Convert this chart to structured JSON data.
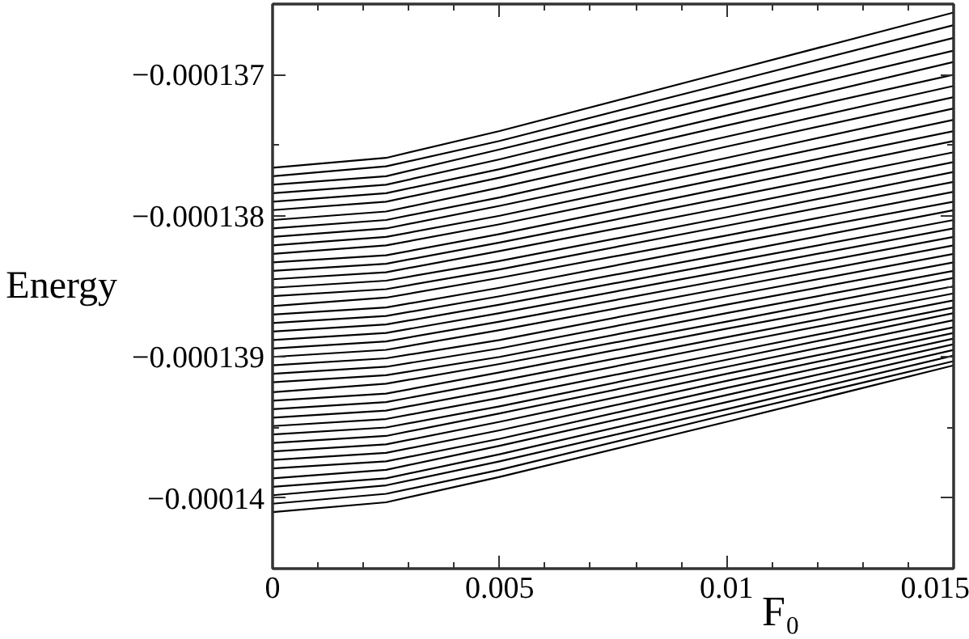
{
  "chart_data": {
    "type": "line",
    "xlabel": "F₀",
    "ylabel": "Energy",
    "x": [
      0,
      0.0025,
      0.005,
      0.01,
      0.015
    ],
    "xlim": [
      0,
      0.015
    ],
    "ylim": [
      -0.0001405,
      -0.0001365
    ],
    "xticks": [
      0,
      {
        "value": 0.001,
        "label": null
      },
      {
        "value": 0.002,
        "label": null
      },
      {
        "value": 0.003,
        "label": null
      },
      {
        "value": 0.004,
        "label": null
      },
      0.005,
      {
        "value": 0.006,
        "label": null
      },
      {
        "value": 0.007,
        "label": null
      },
      {
        "value": 0.008,
        "label": null
      },
      {
        "value": 0.009,
        "label": null
      },
      0.01,
      {
        "value": 0.011,
        "label": null
      },
      {
        "value": 0.012,
        "label": null
      },
      {
        "value": 0.013,
        "label": null
      },
      {
        "value": 0.014,
        "label": null
      },
      0.015
    ],
    "yticks": [
      {
        "value": -0.0001405,
        "label": null
      },
      {
        "value": -0.00014,
        "label": "−0.00014"
      },
      {
        "value": -0.0001395,
        "label": null
      },
      {
        "value": -0.000139,
        "label": "−0.000139"
      },
      {
        "value": -0.0001385,
        "label": null
      },
      {
        "value": -0.000138,
        "label": "−0.000138"
      },
      {
        "value": -0.0001375,
        "label": null
      },
      {
        "value": -0.000137,
        "label": "−0.000137"
      }
    ],
    "grid": false,
    "series": [
      {
        "color": "#000000",
        "values": [
          -0.00013766,
          -0.00013759,
          -0.0001374,
          -0.00013698,
          -0.00013656
        ]
      },
      {
        "color": "#000000",
        "values": [
          -0.00013772,
          -0.00013765,
          -0.00013747,
          -0.00013706,
          -0.00013665
        ]
      },
      {
        "color": "#000000",
        "values": [
          -0.00013778,
          -0.00013772,
          -0.00013753,
          -0.00013714,
          -0.00013674
        ]
      },
      {
        "color": "#000000",
        "values": [
          -0.00013784,
          -0.00013778,
          -0.0001376,
          -0.00013721,
          -0.00013683
        ]
      },
      {
        "color": "#000000",
        "values": [
          -0.0001379,
          -0.00013784,
          -0.00013767,
          -0.00013729,
          -0.00013691
        ]
      },
      {
        "color": "#000000",
        "values": [
          -0.00013796,
          -0.0001379,
          -0.00013773,
          -0.00013736,
          -0.000137
        ]
      },
      {
        "color": "#000000",
        "values": [
          -0.00013803,
          -0.00013797,
          -0.0001378,
          -0.00013744,
          -0.00013708
        ]
      },
      {
        "color": "#000000",
        "values": [
          -0.00013809,
          -0.00013803,
          -0.00013787,
          -0.00013751,
          -0.00013716
        ]
      },
      {
        "color": "#000000",
        "values": [
          -0.00013815,
          -0.00013809,
          -0.00013793,
          -0.00013759,
          -0.00013724
        ]
      },
      {
        "color": "#000000",
        "values": [
          -0.00013821,
          -0.00013815,
          -0.000138,
          -0.00013766,
          -0.00013732
        ]
      },
      {
        "color": "#000000",
        "values": [
          -0.00013827,
          -0.00013821,
          -0.00013806,
          -0.00013773,
          -0.0001374
        ]
      },
      {
        "color": "#000000",
        "values": [
          -0.00013833,
          -0.00013828,
          -0.00013813,
          -0.0001378,
          -0.00013747
        ]
      },
      {
        "color": "#000000",
        "values": [
          -0.00013839,
          -0.00013834,
          -0.00013819,
          -0.00013787,
          -0.00013755
        ]
      },
      {
        "color": "#000000",
        "values": [
          -0.00013845,
          -0.0001384,
          -0.00013825,
          -0.00013794,
          -0.00013762
        ]
      },
      {
        "color": "#000000",
        "values": [
          -0.00013851,
          -0.00013846,
          -0.00013832,
          -0.00013801,
          -0.00013769
        ]
      },
      {
        "color": "#000000",
        "values": [
          -0.00013857,
          -0.00013852,
          -0.00013838,
          -0.00013807,
          -0.00013776
        ]
      },
      {
        "color": "#000000",
        "values": [
          -0.00013864,
          -0.00013858,
          -0.00013844,
          -0.00013814,
          -0.00013783
        ]
      },
      {
        "color": "#000000",
        "values": [
          -0.0001387,
          -0.00013865,
          -0.00013851,
          -0.0001382,
          -0.0001379
        ]
      },
      {
        "color": "#000000",
        "values": [
          -0.00013876,
          -0.00013871,
          -0.00013857,
          -0.00013827,
          -0.00013796
        ]
      },
      {
        "color": "#000000",
        "values": [
          -0.00013882,
          -0.00013877,
          -0.00013863,
          -0.00013833,
          -0.00013803
        ]
      },
      {
        "color": "#000000",
        "values": [
          -0.00013888,
          -0.00013883,
          -0.00013869,
          -0.00013839,
          -0.00013809
        ]
      },
      {
        "color": "#000000",
        "values": [
          -0.00013894,
          -0.00013889,
          -0.00013875,
          -0.00013845,
          -0.00013815
        ]
      },
      {
        "color": "#000000",
        "values": [
          -0.000139,
          -0.00013895,
          -0.00013881,
          -0.00013851,
          -0.00013821
        ]
      },
      {
        "color": "#000000",
        "values": [
          -0.00013906,
          -0.00013901,
          -0.00013888,
          -0.00013857,
          -0.00013827
        ]
      },
      {
        "color": "#000000",
        "values": [
          -0.00013912,
          -0.00013907,
          -0.00013894,
          -0.00013863,
          -0.00013833
        ]
      },
      {
        "color": "#000000",
        "values": [
          -0.00013918,
          -0.00013913,
          -0.000139,
          -0.00013869,
          -0.00013839
        ]
      },
      {
        "color": "#000000",
        "values": [
          -0.00013925,
          -0.00013919,
          -0.00013905,
          -0.00013875,
          -0.00013844
        ]
      },
      {
        "color": "#000000",
        "values": [
          -0.00013931,
          -0.00013926,
          -0.00013911,
          -0.0001388,
          -0.0001385
        ]
      },
      {
        "color": "#000000",
        "values": [
          -0.00013937,
          -0.00013932,
          -0.00013917,
          -0.00013886,
          -0.00013855
        ]
      },
      {
        "color": "#000000",
        "values": [
          -0.00013943,
          -0.00013938,
          -0.00013923,
          -0.00013891,
          -0.0001386
        ]
      },
      {
        "color": "#000000",
        "values": [
          -0.00013949,
          -0.00013944,
          -0.00013929,
          -0.00013897,
          -0.00013865
        ]
      },
      {
        "color": "#000000",
        "values": [
          -0.00013955,
          -0.0001395,
          -0.00013935,
          -0.00013902,
          -0.00013869
        ]
      },
      {
        "color": "#000000",
        "values": [
          -0.00013961,
          -0.00013956,
          -0.0001394,
          -0.00013907,
          -0.00013874
        ]
      },
      {
        "color": "#000000",
        "values": [
          -0.00013967,
          -0.00013962,
          -0.00013946,
          -0.00013912,
          -0.00013879
        ]
      },
      {
        "color": "#000000",
        "values": [
          -0.00013973,
          -0.00013968,
          -0.00013952,
          -0.00013917,
          -0.00013883
        ]
      },
      {
        "color": "#000000",
        "values": [
          -0.00013979,
          -0.00013974,
          -0.00013958,
          -0.00013922,
          -0.00013887
        ]
      },
      {
        "color": "#000000",
        "values": [
          -0.00013986,
          -0.0001398,
          -0.00013963,
          -0.00013927,
          -0.00013891
        ]
      },
      {
        "color": "#000000",
        "values": [
          -0.00013992,
          -0.00013986,
          -0.00013969,
          -0.00013932,
          -0.00013895
        ]
      },
      {
        "color": "#000000",
        "values": [
          -0.00013998,
          -0.00013991,
          -0.00013974,
          -0.00013937,
          -0.00013899
        ]
      },
      {
        "color": "#000000",
        "values": [
          -0.00014004,
          -0.00013997,
          -0.0001398,
          -0.00013941,
          -0.00013903
        ]
      },
      {
        "color": "#000000",
        "values": [
          -0.0001401,
          -0.00014003,
          -0.00013985,
          -0.00013946,
          -0.00013906
        ]
      }
    ]
  }
}
